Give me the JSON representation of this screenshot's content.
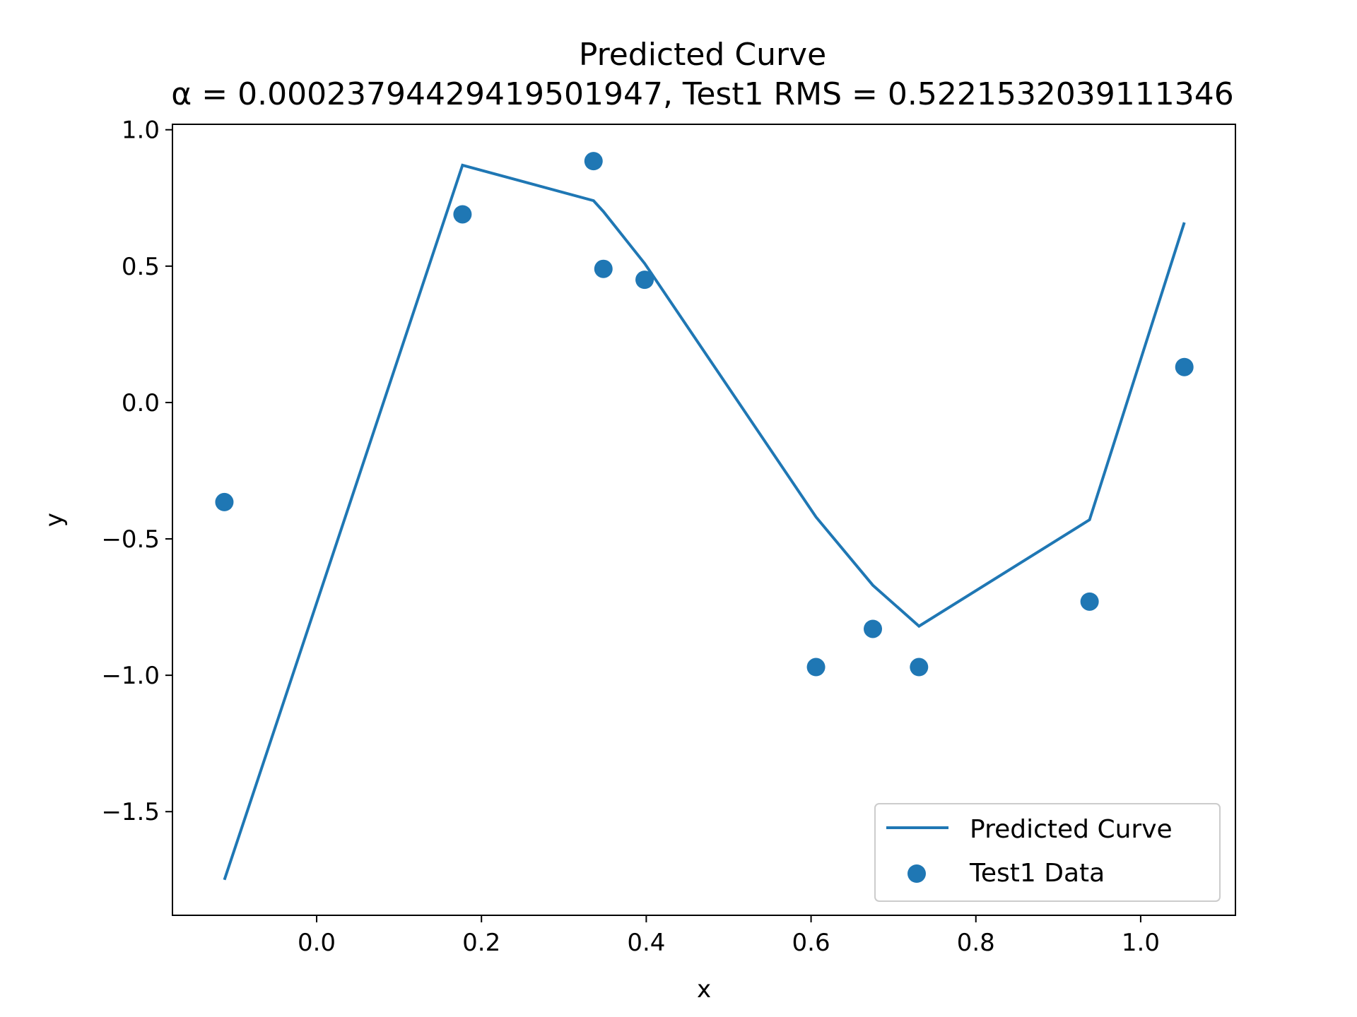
{
  "chart_data": {
    "type": "scatter",
    "title": "Predicted Curve",
    "subtitle": "α = 0.00023794429419501947, Test1 RMS = 0.5221532039111346",
    "xlabel": "x",
    "ylabel": "y",
    "xlim": [
      -0.175,
      1.115
    ],
    "ylim": [
      -1.88,
      1.02
    ],
    "xticks": [
      0.0,
      0.2,
      0.4,
      0.6,
      0.8,
      1.0
    ],
    "xtick_labels": [
      "0.0",
      "0.2",
      "0.4",
      "0.6",
      "0.8",
      "1.0"
    ],
    "yticks": [
      1.0,
      0.5,
      0.0,
      -0.5,
      -1.0,
      -1.5
    ],
    "ytick_labels": [
      "1.0",
      "0.5",
      "0.0",
      "−0.5",
      "−1.0",
      "−1.5"
    ],
    "grid": false,
    "legend_position": "bottom-right",
    "color": "#1f77b4",
    "series": [
      {
        "name": "Predicted Curve",
        "kind": "line",
        "x": [
          -0.112,
          0.177,
          0.336,
          0.348,
          0.398,
          0.606,
          0.675,
          0.731,
          0.938,
          1.053
        ],
        "y": [
          -1.75,
          0.87,
          0.74,
          0.7,
          0.51,
          -0.42,
          -0.67,
          -0.82,
          -0.43,
          0.66
        ]
      },
      {
        "name": "Test1 Data",
        "kind": "scatter",
        "x": [
          -0.112,
          0.177,
          0.336,
          0.348,
          0.398,
          0.606,
          0.675,
          0.731,
          0.938,
          1.053
        ],
        "y": [
          -0.365,
          0.69,
          0.885,
          0.49,
          0.45,
          -0.97,
          -0.83,
          -0.97,
          -0.73,
          0.13
        ]
      }
    ]
  }
}
